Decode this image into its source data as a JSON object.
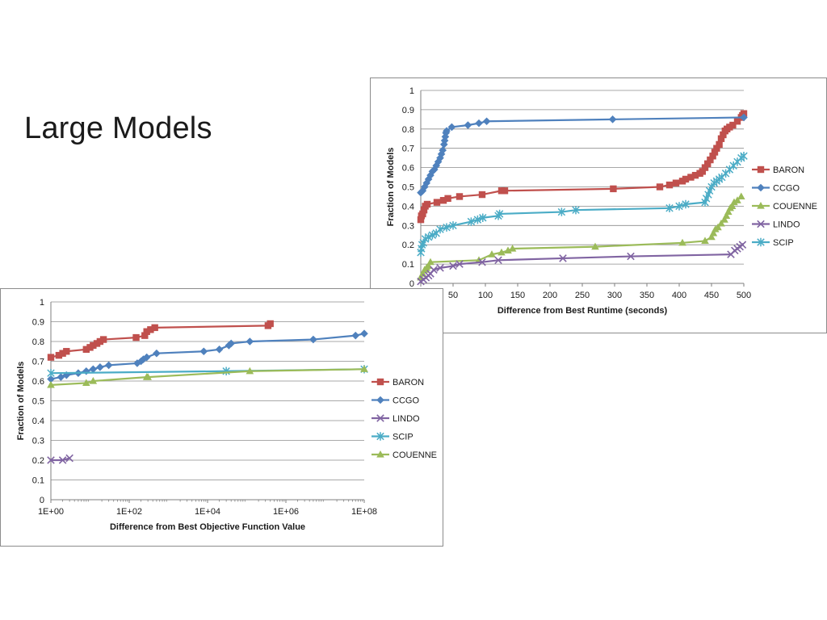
{
  "slide": {
    "title": "Large Models"
  },
  "chart_data": [
    {
      "id": "runtime",
      "type": "line",
      "title": "",
      "xlabel": "Difference from Best Runtime (seconds)",
      "ylabel": "Fraction of Models",
      "xlim": [
        0,
        500
      ],
      "ylim": [
        0,
        1
      ],
      "x_ticks": [
        0,
        50,
        100,
        150,
        200,
        250,
        300,
        350,
        400,
        450,
        500
      ],
      "x_tick_labels": [
        "0",
        "50",
        "100",
        "150",
        "200",
        "250",
        "300",
        "350",
        "400",
        "450",
        "500"
      ],
      "y_ticks": [
        0,
        0.1,
        0.2,
        0.3,
        0.4,
        0.5,
        0.6,
        0.7,
        0.8,
        0.9,
        1
      ],
      "y_tick_labels": [
        "0",
        "0.1",
        "0.2",
        "0.3",
        "0.4",
        "0.5",
        "0.6",
        "0.7",
        "0.8",
        "0.9",
        "1"
      ],
      "grid": true,
      "legend": "right",
      "series": [
        {
          "name": "BARON",
          "color": "#c0504d",
          "marker": "square",
          "points": [
            [
              0,
              0.33
            ],
            [
              1,
              0.35
            ],
            [
              3,
              0.36
            ],
            [
              5,
              0.38
            ],
            [
              7,
              0.4
            ],
            [
              10,
              0.41
            ],
            [
              25,
              0.42
            ],
            [
              35,
              0.43
            ],
            [
              42,
              0.44
            ],
            [
              60,
              0.45
            ],
            [
              95,
              0.46
            ],
            [
              125,
              0.48
            ],
            [
              130,
              0.48
            ],
            [
              298,
              0.49
            ],
            [
              370,
              0.5
            ],
            [
              385,
              0.51
            ],
            [
              395,
              0.52
            ],
            [
              405,
              0.53
            ],
            [
              410,
              0.54
            ],
            [
              418,
              0.55
            ],
            [
              425,
              0.56
            ],
            [
              432,
              0.57
            ],
            [
              436,
              0.58
            ],
            [
              440,
              0.6
            ],
            [
              444,
              0.62
            ],
            [
              448,
              0.64
            ],
            [
              452,
              0.66
            ],
            [
              455,
              0.68
            ],
            [
              458,
              0.7
            ],
            [
              462,
              0.72
            ],
            [
              465,
              0.75
            ],
            [
              468,
              0.77
            ],
            [
              471,
              0.79
            ],
            [
              474,
              0.8
            ],
            [
              478,
              0.81
            ],
            [
              483,
              0.82
            ],
            [
              490,
              0.84
            ],
            [
              496,
              0.86
            ],
            [
              498,
              0.87
            ],
            [
              500,
              0.88
            ]
          ]
        },
        {
          "name": "CCGO",
          "color": "#4f81bd",
          "marker": "diamond",
          "points": [
            [
              0,
              0.47
            ],
            [
              3,
              0.48
            ],
            [
              6,
              0.5
            ],
            [
              9,
              0.52
            ],
            [
              12,
              0.54
            ],
            [
              15,
              0.56
            ],
            [
              18,
              0.58
            ],
            [
              21,
              0.59
            ],
            [
              24,
              0.61
            ],
            [
              27,
              0.63
            ],
            [
              30,
              0.65
            ],
            [
              32,
              0.67
            ],
            [
              34,
              0.69
            ],
            [
              36,
              0.72
            ],
            [
              37,
              0.74
            ],
            [
              38,
              0.76
            ],
            [
              39,
              0.78
            ],
            [
              40,
              0.79
            ],
            [
              48,
              0.81
            ],
            [
              73,
              0.82
            ],
            [
              90,
              0.83
            ],
            [
              102,
              0.84
            ],
            [
              297,
              0.85
            ],
            [
              500,
              0.86
            ]
          ]
        },
        {
          "name": "COUENNE",
          "color": "#9bbb59",
          "marker": "triangle",
          "points": [
            [
              0,
              0.03
            ],
            [
              3,
              0.05
            ],
            [
              6,
              0.07
            ],
            [
              9,
              0.08
            ],
            [
              12,
              0.09
            ],
            [
              15,
              0.11
            ],
            [
              90,
              0.12
            ],
            [
              110,
              0.15
            ],
            [
              125,
              0.16
            ],
            [
              135,
              0.17
            ],
            [
              142,
              0.18
            ],
            [
              270,
              0.19
            ],
            [
              405,
              0.21
            ],
            [
              440,
              0.22
            ],
            [
              450,
              0.24
            ],
            [
              453,
              0.26
            ],
            [
              456,
              0.28
            ],
            [
              460,
              0.29
            ],
            [
              465,
              0.31
            ],
            [
              470,
              0.33
            ],
            [
              473,
              0.35
            ],
            [
              476,
              0.37
            ],
            [
              479,
              0.39
            ],
            [
              482,
              0.4
            ],
            [
              485,
              0.42
            ],
            [
              490,
              0.43
            ],
            [
              496,
              0.45
            ]
          ]
        },
        {
          "name": "LINDO",
          "color": "#8064a2",
          "marker": "x",
          "points": [
            [
              0,
              0.01
            ],
            [
              4,
              0.02
            ],
            [
              8,
              0.03
            ],
            [
              12,
              0.04
            ],
            [
              15,
              0.05
            ],
            [
              20,
              0.07
            ],
            [
              30,
              0.08
            ],
            [
              50,
              0.09
            ],
            [
              60,
              0.1
            ],
            [
              95,
              0.11
            ],
            [
              120,
              0.12
            ],
            [
              220,
              0.13
            ],
            [
              325,
              0.14
            ],
            [
              480,
              0.15
            ],
            [
              486,
              0.17
            ],
            [
              490,
              0.18
            ],
            [
              494,
              0.19
            ],
            [
              498,
              0.2
            ]
          ]
        },
        {
          "name": "SCIP",
          "color": "#4bacc6",
          "marker": "star",
          "points": [
            [
              0,
              0.16
            ],
            [
              1,
              0.18
            ],
            [
              2,
              0.2
            ],
            [
              4,
              0.21
            ],
            [
              7,
              0.23
            ],
            [
              12,
              0.24
            ],
            [
              18,
              0.25
            ],
            [
              24,
              0.26
            ],
            [
              30,
              0.28
            ],
            [
              40,
              0.29
            ],
            [
              50,
              0.3
            ],
            [
              78,
              0.32
            ],
            [
              88,
              0.33
            ],
            [
              96,
              0.34
            ],
            [
              120,
              0.35
            ],
            [
              122,
              0.36
            ],
            [
              218,
              0.37
            ],
            [
              240,
              0.38
            ],
            [
              385,
              0.39
            ],
            [
              400,
              0.4
            ],
            [
              410,
              0.41
            ],
            [
              440,
              0.42
            ],
            [
              442,
              0.44
            ],
            [
              445,
              0.46
            ],
            [
              447,
              0.48
            ],
            [
              450,
              0.5
            ],
            [
              454,
              0.52
            ],
            [
              458,
              0.53
            ],
            [
              462,
              0.54
            ],
            [
              466,
              0.55
            ],
            [
              472,
              0.57
            ],
            [
              478,
              0.59
            ],
            [
              484,
              0.61
            ],
            [
              490,
              0.63
            ],
            [
              496,
              0.65
            ],
            [
              500,
              0.66
            ]
          ]
        }
      ]
    },
    {
      "id": "objective",
      "type": "line",
      "title": "",
      "xlabel": "Difference from Best Objective Function Value",
      "ylabel": "Fraction of Models",
      "xscale": "log",
      "xlim": [
        1,
        100000000
      ],
      "ylim": [
        0,
        1
      ],
      "x_ticks": [
        1,
        100,
        10000,
        1000000,
        100000000
      ],
      "x_tick_labels": [
        "1E+00",
        "1E+02",
        "1E+04",
        "1E+06",
        "1E+08"
      ],
      "y_ticks": [
        0,
        0.1,
        0.2,
        0.3,
        0.4,
        0.5,
        0.6,
        0.7,
        0.8,
        0.9,
        1
      ],
      "y_tick_labels": [
        "0",
        "0.1",
        "0.2",
        "0.3",
        "0.4",
        "0.5",
        "0.6",
        "0.7",
        "0.8",
        "0.9",
        "1"
      ],
      "grid": true,
      "legend": "right",
      "series": [
        {
          "name": "BARON",
          "color": "#c0504d",
          "marker": "square",
          "points": [
            [
              1,
              0.72
            ],
            [
              1.6,
              0.73
            ],
            [
              2.0,
              0.74
            ],
            [
              2.5,
              0.75
            ],
            [
              8,
              0.76
            ],
            [
              10,
              0.77
            ],
            [
              12,
              0.78
            ],
            [
              15,
              0.79
            ],
            [
              18,
              0.8
            ],
            [
              22,
              0.81
            ],
            [
              150,
              0.82
            ],
            [
              250,
              0.83
            ],
            [
              280,
              0.85
            ],
            [
              350,
              0.86
            ],
            [
              450,
              0.87
            ],
            [
              350000,
              0.88
            ],
            [
              400000,
              0.89
            ]
          ]
        },
        {
          "name": "CCGO",
          "color": "#4f81bd",
          "marker": "diamond",
          "points": [
            [
              1,
              0.61
            ],
            [
              1.8,
              0.62
            ],
            [
              2.5,
              0.63
            ],
            [
              5,
              0.64
            ],
            [
              8,
              0.65
            ],
            [
              12,
              0.66
            ],
            [
              18,
              0.67
            ],
            [
              30,
              0.68
            ],
            [
              160,
              0.69
            ],
            [
              200,
              0.7
            ],
            [
              230,
              0.71
            ],
            [
              280,
              0.72
            ],
            [
              500,
              0.74
            ],
            [
              8000,
              0.75
            ],
            [
              20000,
              0.76
            ],
            [
              35000,
              0.78
            ],
            [
              40000,
              0.79
            ],
            [
              120000,
              0.8
            ],
            [
              5000000,
              0.81
            ],
            [
              60000000,
              0.83
            ],
            [
              100000000,
              0.84
            ]
          ]
        },
        {
          "name": "LINDO",
          "color": "#8064a2",
          "marker": "x",
          "points": [
            [
              1,
              0.2
            ],
            [
              2,
              0.2
            ],
            [
              3,
              0.21
            ]
          ]
        },
        {
          "name": "SCIP",
          "color": "#4bacc6",
          "marker": "star",
          "points": [
            [
              1,
              0.64
            ],
            [
              30000,
              0.65
            ],
            [
              100000000,
              0.66
            ]
          ]
        },
        {
          "name": "COUENNE",
          "color": "#9bbb59",
          "marker": "triangle",
          "points": [
            [
              1,
              0.58
            ],
            [
              8,
              0.59
            ],
            [
              12,
              0.6
            ],
            [
              280,
              0.62
            ],
            [
              300,
              0.62
            ],
            [
              120000,
              0.65
            ],
            [
              100000000,
              0.66
            ]
          ]
        }
      ]
    }
  ]
}
